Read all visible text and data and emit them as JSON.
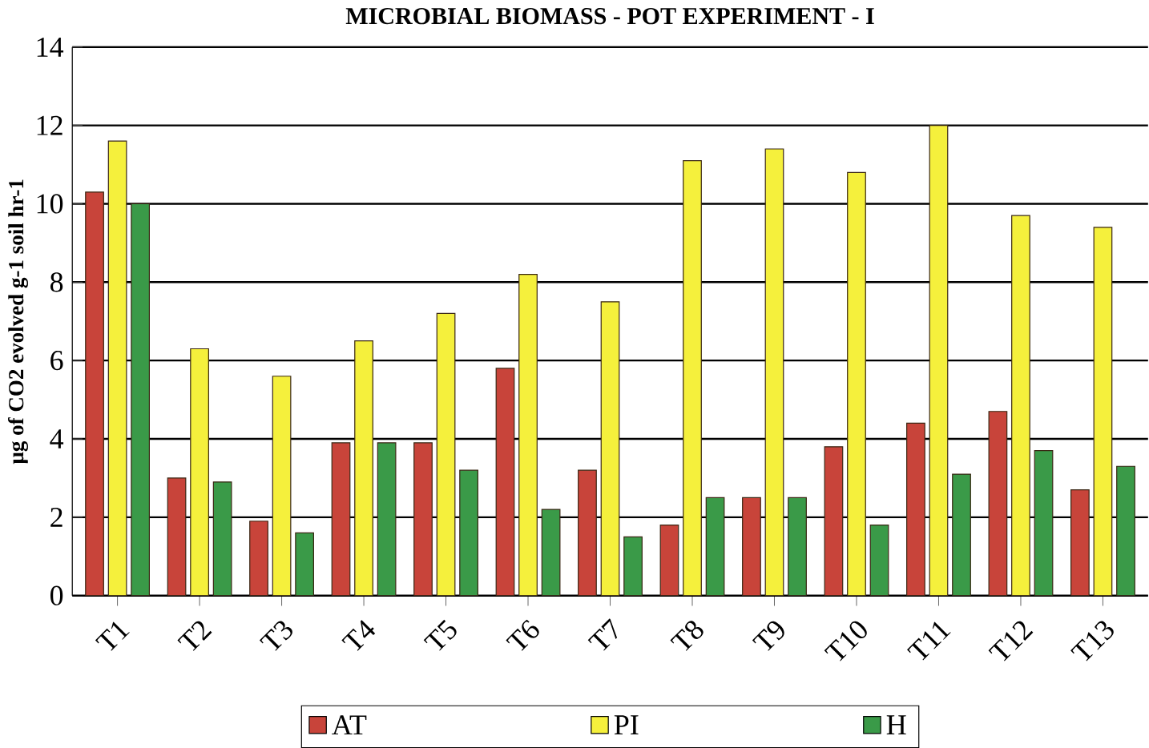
{
  "chart_data": {
    "type": "bar",
    "title": "MICROBIAL BIOMASS - POT EXPERIMENT - I",
    "ylabel": "μg of CO2 evolved g-1 soil hr-1",
    "categories": [
      "T1",
      "T2",
      "T3",
      "T4",
      "T5",
      "T6",
      "T7",
      "T8",
      "T9",
      "T10",
      "T11",
      "T12",
      "T13"
    ],
    "series": [
      {
        "name": "AT",
        "color": "#c8443a",
        "values": [
          10.3,
          3.0,
          1.9,
          3.9,
          3.9,
          5.8,
          3.2,
          1.8,
          2.5,
          3.8,
          4.4,
          4.7,
          2.7
        ]
      },
      {
        "name": "PI",
        "color": "#f5f03c",
        "values": [
          11.6,
          6.3,
          5.6,
          6.5,
          7.2,
          8.2,
          7.5,
          11.1,
          11.4,
          10.8,
          12.0,
          9.7,
          9.4
        ]
      },
      {
        "name": "H",
        "color": "#3a9a48",
        "values": [
          10.0,
          2.9,
          1.6,
          3.9,
          3.2,
          2.2,
          1.5,
          2.5,
          2.5,
          1.8,
          3.1,
          3.7,
          3.3
        ]
      }
    ],
    "ylim": [
      0,
      14
    ],
    "yticks": [
      0,
      2,
      4,
      6,
      8,
      10,
      12,
      14
    ],
    "grid": "y",
    "legend": "bottom"
  }
}
